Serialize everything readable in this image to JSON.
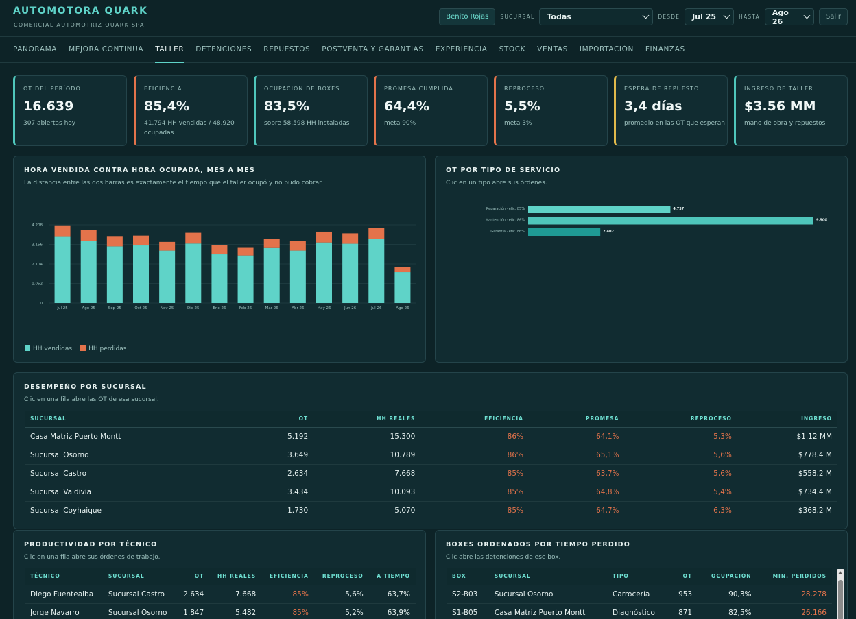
{
  "brand": {
    "title": "AUTOMOTORA QUARK",
    "subtitle": "COMERCIAL AUTOMOTRIZ QUARK SPA"
  },
  "header": {
    "user": "Benito Rojas",
    "sucursal_label": "SUCURSAL",
    "sucursal_value": "Todas",
    "desde_label": "DESDE",
    "desde_value": "Jul 25",
    "hasta_label": "HASTA",
    "hasta_value": "Ago 26",
    "logout": "Salir"
  },
  "nav": [
    "PANORAMA",
    "MEJORA CONTINUA",
    "TALLER",
    "DETENCIONES",
    "REPUESTOS",
    "POSTVENTA Y GARANTÍAS",
    "EXPERIENCIA",
    "STOCK",
    "VENTAS",
    "IMPORTACIÓN",
    "FINANZAS"
  ],
  "kpis": [
    {
      "label": "OT DEL PERÍODO",
      "value": "16.639",
      "sub": "307 abiertas hoy"
    },
    {
      "label": "EFICIENCIA",
      "value": "85,4%",
      "sub": "41.794 HH vendidas / 48.920 ocupadas"
    },
    {
      "label": "OCUPACIÓN DE BOXES",
      "value": "83,5%",
      "sub": "sobre 58.598 HH instaladas"
    },
    {
      "label": "PROMESA CUMPLIDA",
      "value": "64,4%",
      "sub": "meta 90%"
    },
    {
      "label": "REPROCESO",
      "value": "5,5%",
      "sub": "meta 3%"
    },
    {
      "label": "ESPERA DE REPUESTO",
      "value": "3,4 días",
      "sub": "promedio en las OT que esperan"
    },
    {
      "label": "INGRESO DE TALLER",
      "value": "$3.56 MM",
      "sub": "mano de obra y repuestos"
    }
  ],
  "hours": {
    "title": "HORA VENDIDA CONTRA HORA OCUPADA, MES A MES",
    "subtitle": "La distancia entre las dos barras es exactamente el tiempo que el taller ocupó y no pudo cobrar.",
    "legend_sold": "HH vendidas",
    "legend_lost": "HH perdidas"
  },
  "servicio": {
    "title": "OT POR TIPO DE SERVICIO",
    "subtitle": "Clic en un tipo abre sus órdenes."
  },
  "sucursal": {
    "title": "DESEMPEÑO POR SUCURSAL",
    "subtitle": "Clic en una fila abre las OT de esa sucursal.",
    "headers": [
      "SUCURSAL",
      "OT",
      "HH REALES",
      "EFICIENCIA",
      "PROMESA",
      "REPROCESO",
      "INGRESO"
    ],
    "rows": [
      [
        "Casa Matriz Puerto Montt",
        "5.192",
        "15.300",
        "86%",
        "64,1%",
        "5,3%",
        "$1.12 MM"
      ],
      [
        "Sucursal Osorno",
        "3.649",
        "10.789",
        "86%",
        "65,1%",
        "5,6%",
        "$778.4 M"
      ],
      [
        "Sucursal Castro",
        "2.634",
        "7.668",
        "85%",
        "63,7%",
        "5,6%",
        "$558.2 M"
      ],
      [
        "Sucursal Valdivia",
        "3.434",
        "10.093",
        "85%",
        "64,8%",
        "5,4%",
        "$734.4 M"
      ],
      [
        "Sucursal Coyhaique",
        "1.730",
        "5.070",
        "85%",
        "64,7%",
        "6,3%",
        "$368.2 M"
      ]
    ]
  },
  "tecnicos": {
    "title": "PRODUCTIVIDAD POR TÉCNICO",
    "subtitle": "Clic en una fila abre sus órdenes de trabajo.",
    "headers": [
      "TÉCNICO",
      "SUCURSAL",
      "OT",
      "HH REALES",
      "EFICIENCIA",
      "REPROCESO",
      "A TIEMPO"
    ],
    "rows": [
      [
        "Diego Fuentealba",
        "Sucursal Castro",
        "2.634",
        "7.668",
        "85%",
        "5,6%",
        "63,7%"
      ],
      [
        "Jorge Navarro",
        "Sucursal Osorno",
        "1.847",
        "5.482",
        "85%",
        "5,2%",
        "63,9%"
      ]
    ]
  },
  "boxes": {
    "title": "BOXES ORDENADOS POR TIEMPO PERDIDO",
    "subtitle": "Clic abre las detenciones de ese box.",
    "headers": [
      "BOX",
      "SUCURSAL",
      "TIPO",
      "OT",
      "OCUPACIÓN",
      "MIN. PERDIDOS"
    ],
    "rows": [
      [
        "S2-B03",
        "Sucursal Osorno",
        "Carrocería",
        "953",
        "90,3%",
        "28.278"
      ],
      [
        "S1-B05",
        "Casa Matriz Puerto Montt",
        "Diagnóstico",
        "871",
        "82,5%",
        "26.166"
      ]
    ]
  },
  "colors": {
    "accent": "#5fd3c8",
    "sold": "#5fd3c8",
    "lost": "#e3734b",
    "warn": "#e3734b"
  },
  "chart_data": [
    {
      "type": "bar",
      "stacked": true,
      "categories": [
        "Jul 25",
        "Ago 25",
        "Sep 25",
        "Oct 25",
        "Nov 25",
        "Dic 25",
        "Ene 26",
        "Feb 26",
        "Mar 26",
        "Abr 26",
        "May 26",
        "Jun 26",
        "Jul 26",
        "Ago 26"
      ],
      "series": [
        {
          "name": "HH vendidas",
          "values": [
            3560,
            3340,
            3050,
            3100,
            2820,
            3200,
            2620,
            2560,
            2960,
            2820,
            3260,
            3190,
            3460,
            1660
          ]
        },
        {
          "name": "HH perdidas",
          "values": [
            620,
            600,
            520,
            530,
            470,
            580,
            500,
            410,
            500,
            520,
            580,
            560,
            590,
            290
          ]
        }
      ],
      "yticks": [
        "0",
        "1.052",
        "2.104",
        "3.156",
        "4.208"
      ],
      "ylim": [
        0,
        4208
      ],
      "grid": true,
      "legend": "bottom-left"
    },
    {
      "type": "bar",
      "orientation": "horizontal",
      "categories": [
        "Reparación · efic. 85%",
        "Mantención · efic. 86%",
        "Garantía · efic. 86%"
      ],
      "values": [
        4737,
        9500,
        2402
      ],
      "value_labels": [
        "4.737",
        "9.500",
        "2.402"
      ],
      "xlim": [
        0,
        9500
      ]
    }
  ]
}
